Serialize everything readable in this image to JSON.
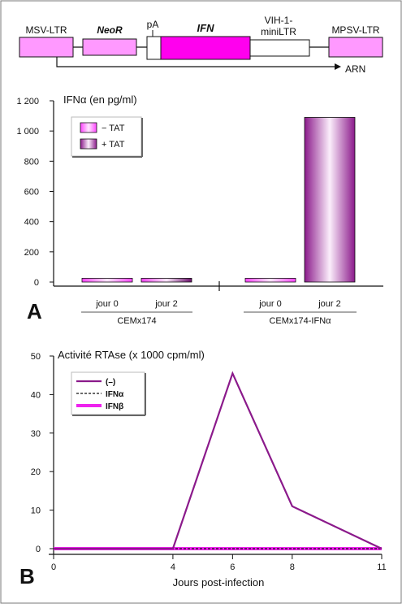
{
  "construct": {
    "segments": [
      {
        "label": "MSV-LTR",
        "style": "pink",
        "italic": false
      },
      {
        "label": "NeoR",
        "style": "pink",
        "italic": true
      },
      {
        "label": "pA",
        "style": "white",
        "italic": false
      },
      {
        "label": "IFN",
        "style": "magenta",
        "italic": true
      },
      {
        "label": "VIH-1-",
        "label2": "miniLTR",
        "style": "white",
        "italic": false
      },
      {
        "label": "MPSV-LTR",
        "style": "pink",
        "italic": false
      }
    ],
    "arrow_label": "ARN"
  },
  "panel_a": {
    "letter": "A",
    "chart_data": {
      "type": "bar",
      "ylabel": "IFNα (en pg/ml)",
      "ylim": [
        0,
        1200
      ],
      "yticks": [
        0,
        200,
        400,
        600,
        800,
        1000,
        1200
      ],
      "ytick_labels": [
        "0",
        "200",
        "400",
        "600",
        "800",
        "1 000",
        "1 200"
      ],
      "legend": [
        {
          "name": "− TAT",
          "color": "#ff33ff"
        },
        {
          "name": "+ TAT",
          "color": "#8b1a8b"
        }
      ],
      "legend_position": "top-left",
      "groups": [
        {
          "name": "CEMx174",
          "bars": [
            {
              "label": "jour 0",
              "series": "− TAT",
              "value": 25
            },
            {
              "label": "jour 2",
              "series": "+ TAT",
              "value": 25
            }
          ]
        },
        {
          "name": "CEMx174-IFNα",
          "bars": [
            {
              "label": "jour 0",
              "series": "− TAT",
              "value": 25
            },
            {
              "label": "jour 2",
              "series": "+ TAT",
              "value": 1090
            }
          ]
        }
      ]
    }
  },
  "panel_b": {
    "letter": "B",
    "chart_data": {
      "type": "line",
      "ylabel": "Activité RTAse (x 1000 cpm/ml)",
      "xlabel": "Jours post-infection",
      "xlim": [
        0,
        11
      ],
      "ylim": [
        0,
        50
      ],
      "xticks": [
        0,
        4,
        6,
        8,
        11
      ],
      "yticks": [
        0,
        10,
        20,
        30,
        40,
        50
      ],
      "legend_position": "top-left",
      "series": [
        {
          "name": "(–)",
          "style": "solid",
          "color": "#8b1a8b",
          "x": [
            0,
            4,
            6,
            8,
            11
          ],
          "y": [
            0,
            0,
            45.5,
            11,
            0
          ]
        },
        {
          "name": "IFNα",
          "style": "dashed",
          "color": "#111111",
          "x": [
            0,
            4,
            6,
            8,
            11
          ],
          "y": [
            0,
            0,
            0,
            0,
            0
          ]
        },
        {
          "name": "IFNβ",
          "style": "thick",
          "color": "#ee22ee",
          "x": [
            0,
            4,
            6,
            8,
            11
          ],
          "y": [
            0,
            0,
            0,
            0,
            0
          ]
        }
      ]
    }
  }
}
